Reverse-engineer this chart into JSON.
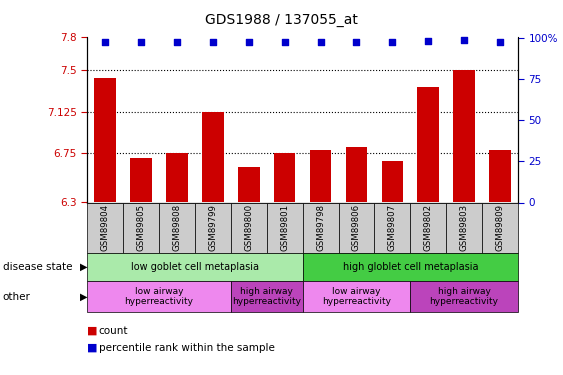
{
  "title": "GDS1988 / 137055_at",
  "samples": [
    "GSM89804",
    "GSM89805",
    "GSM89808",
    "GSM89799",
    "GSM89800",
    "GSM89801",
    "GSM89798",
    "GSM89806",
    "GSM89807",
    "GSM89802",
    "GSM89803",
    "GSM89809"
  ],
  "bar_values": [
    7.43,
    6.7,
    6.75,
    7.125,
    6.62,
    6.75,
    6.78,
    6.8,
    6.68,
    7.35,
    7.5,
    6.78
  ],
  "percentile_values": [
    7.76,
    7.76,
    7.76,
    7.76,
    7.76,
    7.76,
    7.76,
    7.76,
    7.76,
    7.77,
    7.78,
    7.76
  ],
  "bar_color": "#cc0000",
  "percentile_color": "#0000cc",
  "ylim_left": [
    6.3,
    7.8
  ],
  "yticks_left": [
    6.3,
    6.75,
    7.125,
    7.5,
    7.8
  ],
  "ytick_labels_left": [
    "6.3",
    "6.75",
    "7.125",
    "7.5",
    "7.8"
  ],
  "yticks_right": [
    0,
    25,
    50,
    75,
    100
  ],
  "ytick_labels_right": [
    "0",
    "25",
    "50",
    "75",
    "100%"
  ],
  "hlines": [
    6.75,
    7.125,
    7.5
  ],
  "disease_state_groups": [
    {
      "label": "low goblet cell metaplasia",
      "start": 0,
      "end": 6,
      "color": "#aaeaaa"
    },
    {
      "label": "high globlet cell metaplasia",
      "start": 6,
      "end": 12,
      "color": "#44cc44"
    }
  ],
  "other_groups": [
    {
      "label": "low airway\nhyperreactivity",
      "start": 0,
      "end": 4,
      "color": "#ee88ee"
    },
    {
      "label": "high airway\nhyperreactivity",
      "start": 4,
      "end": 6,
      "color": "#bb44bb"
    },
    {
      "label": "low airway\nhyperreactivity",
      "start": 6,
      "end": 9,
      "color": "#ee88ee"
    },
    {
      "label": "high airway\nhyperreactivity",
      "start": 9,
      "end": 12,
      "color": "#bb44bb"
    }
  ],
  "bg_color": "#ffffff",
  "bar_width": 0.6,
  "left_label_color": "#cc0000",
  "right_label_color": "#0000cc",
  "tick_box_color": "#cccccc"
}
